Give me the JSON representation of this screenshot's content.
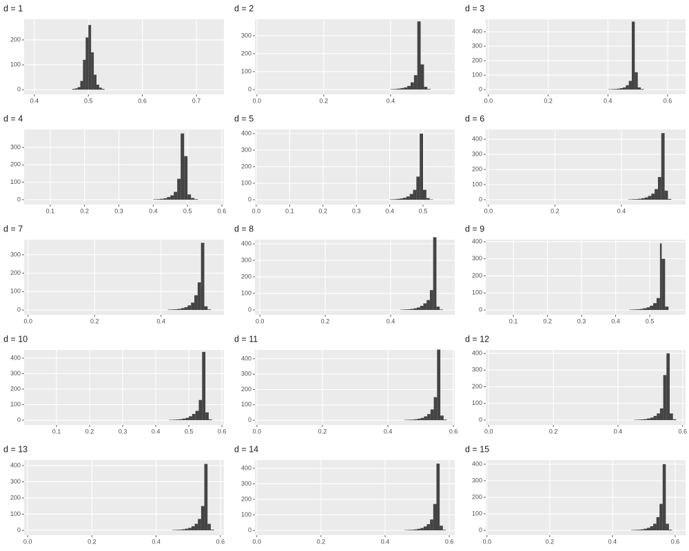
{
  "chart_data": [
    {
      "type": "histogram",
      "title": "d = 1",
      "color": "#444444",
      "grid": true,
      "xlim": [
        0.381,
        0.751
      ],
      "ylim": [
        -19,
        283
      ],
      "xticks": [
        0.4,
        0.5,
        0.6,
        0.7
      ],
      "yticks": [
        0,
        100,
        200
      ],
      "bins": [
        0.47,
        0.475,
        0.48,
        0.485,
        0.49,
        0.495,
        0.5,
        0.505,
        0.51,
        0.515,
        0.52,
        0.525,
        0.53
      ],
      "counts": [
        3,
        5,
        10,
        35,
        120,
        210,
        260,
        150,
        60,
        20,
        8,
        3
      ]
    },
    {
      "type": "histogram",
      "title": "d = 2",
      "color": "#444444",
      "grid": true,
      "xlim": [
        -0.006,
        0.592
      ],
      "ylim": [
        -27,
        392
      ],
      "xticks": [
        {
          "value": 0,
          "label": "0.0"
        },
        0.2,
        0.4
      ],
      "yticks": [
        0,
        100,
        200,
        300
      ],
      "bins": [
        0.4,
        0.41,
        0.42,
        0.43,
        0.44,
        0.45,
        0.46,
        0.47,
        0.48,
        0.49,
        0.5,
        0.51,
        0.52
      ],
      "counts": [
        2,
        3,
        5,
        8,
        12,
        20,
        40,
        80,
        380,
        140,
        15,
        3
      ]
    },
    {
      "type": "histogram",
      "title": "d = 3",
      "color": "#444444",
      "grid": true,
      "xlim": [
        -0.009,
        0.66
      ],
      "ylim": [
        -33,
        486
      ],
      "xticks": [
        {
          "value": 0,
          "label": "0.0"
        },
        0.2,
        0.4,
        0.6
      ],
      "yticks": [
        0,
        100,
        200,
        300,
        400
      ],
      "bins": [
        0.4,
        0.41,
        0.42,
        0.43,
        0.44,
        0.45,
        0.46,
        0.47,
        0.48,
        0.49,
        0.5,
        0.51,
        0.52
      ],
      "counts": [
        2,
        3,
        4,
        6,
        10,
        15,
        30,
        60,
        470,
        120,
        15,
        4
      ]
    },
    {
      "type": "histogram",
      "title": "d = 4",
      "color": "#444444",
      "grid": true,
      "xlim": [
        0.024,
        0.606
      ],
      "ylim": [
        -28,
        403
      ],
      "xticks": [
        0.1,
        0.2,
        0.3,
        0.4,
        0.5,
        0.6
      ],
      "yticks": [
        0,
        100,
        200,
        300
      ],
      "bins": [
        0.4,
        0.41,
        0.42,
        0.43,
        0.44,
        0.45,
        0.46,
        0.47,
        0.48,
        0.49,
        0.5,
        0.51,
        0.52,
        0.53
      ],
      "counts": [
        2,
        3,
        5,
        8,
        15,
        25,
        45,
        120,
        380,
        250,
        30,
        10,
        3
      ]
    },
    {
      "type": "histogram",
      "title": "d = 5",
      "color": "#444444",
      "grid": true,
      "xlim": [
        -0.004,
        0.595
      ],
      "ylim": [
        -29,
        425
      ],
      "xticks": [
        {
          "value": 0,
          "label": "0.0"
        },
        0.1,
        0.2,
        0.3,
        0.4,
        0.5
      ],
      "yticks": [
        0,
        100,
        200,
        300,
        400
      ],
      "bins": [
        0.4,
        0.41,
        0.42,
        0.43,
        0.44,
        0.45,
        0.46,
        0.47,
        0.48,
        0.49,
        0.5,
        0.51,
        0.52,
        0.53
      ],
      "counts": [
        2,
        3,
        5,
        8,
        12,
        20,
        35,
        60,
        140,
        400,
        60,
        10,
        2
      ]
    },
    {
      "type": "histogram",
      "title": "d = 6",
      "color": "#444444",
      "grid": true,
      "xlim": [
        -0.008,
        0.593
      ],
      "ylim": [
        -32,
        464
      ],
      "xticks": [
        {
          "value": 0,
          "label": "0.0"
        },
        0.2,
        0.4
      ],
      "yticks": [
        0,
        100,
        200,
        300,
        400
      ],
      "bins": [
        0.42,
        0.43,
        0.44,
        0.45,
        0.46,
        0.47,
        0.48,
        0.49,
        0.5,
        0.51,
        0.52,
        0.53,
        0.54,
        0.55
      ],
      "counts": [
        2,
        3,
        4,
        6,
        10,
        15,
        25,
        40,
        70,
        150,
        440,
        60,
        5
      ]
    },
    {
      "type": "histogram",
      "title": "d = 7",
      "color": "#444444",
      "grid": true,
      "xlim": [
        -0.012,
        0.589
      ],
      "ylim": [
        -26,
        382
      ],
      "xticks": [
        {
          "value": 0,
          "label": "0.0"
        },
        0.2,
        0.4
      ],
      "yticks": [
        0,
        100,
        200,
        300
      ],
      "bins": [
        0.42,
        0.43,
        0.44,
        0.45,
        0.46,
        0.47,
        0.48,
        0.49,
        0.5,
        0.51,
        0.52,
        0.53,
        0.54,
        0.55
      ],
      "counts": [
        2,
        3,
        4,
        6,
        10,
        15,
        25,
        40,
        80,
        150,
        365,
        20,
        3
      ]
    },
    {
      "type": "histogram",
      "title": "d = 8",
      "color": "#444444",
      "grid": true,
      "xlim": [
        -0.015,
        0.596
      ],
      "ylim": [
        -29,
        425
      ],
      "xticks": [
        {
          "value": 0,
          "label": "0.0"
        },
        0.2,
        0.4
      ],
      "yticks": [
        0,
        100,
        200,
        300,
        400
      ],
      "bins": [
        0.43,
        0.44,
        0.45,
        0.46,
        0.47,
        0.48,
        0.49,
        0.5,
        0.51,
        0.52,
        0.53,
        0.54,
        0.55,
        0.56
      ],
      "counts": [
        2,
        3,
        4,
        6,
        10,
        15,
        25,
        40,
        60,
        120,
        440,
        20,
        3
      ]
    },
    {
      "type": "histogram",
      "title": "d = 9",
      "color": "#444444",
      "grid": true,
      "xlim": [
        0.019,
        0.605
      ],
      "ylim": [
        -28,
        412
      ],
      "xticks": [
        0.1,
        0.2,
        0.3,
        0.4,
        0.5
      ],
      "yticks": [
        0,
        100,
        200,
        300,
        400
      ],
      "bins": [
        0.44,
        0.45,
        0.46,
        0.47,
        0.48,
        0.49,
        0.5,
        0.51,
        0.52,
        0.53,
        0.535,
        0.545,
        0.555
      ],
      "counts": [
        2,
        3,
        4,
        6,
        10,
        15,
        25,
        40,
        70,
        390,
        300,
        20
      ]
    },
    {
      "type": "histogram",
      "title": "d = 10",
      "color": "#444444",
      "grid": true,
      "xlim": [
        0.002,
        0.606
      ],
      "ylim": [
        -31,
        453
      ],
      "xticks": [
        0.1,
        0.2,
        0.3,
        0.4,
        0.5,
        0.6
      ],
      "yticks": [
        0,
        100,
        200,
        300,
        400
      ],
      "bins": [
        0.44,
        0.45,
        0.46,
        0.47,
        0.48,
        0.49,
        0.5,
        0.51,
        0.52,
        0.53,
        0.54,
        0.55,
        0.56,
        0.57
      ],
      "counts": [
        2,
        3,
        4,
        6,
        10,
        15,
        25,
        40,
        60,
        130,
        440,
        50,
        5
      ]
    },
    {
      "type": "histogram",
      "title": "d = 11",
      "color": "#444444",
      "grid": true,
      "xlim": [
        -0.006,
        0.604
      ],
      "ylim": [
        -31,
        458
      ],
      "xticks": [
        {
          "value": 0,
          "label": "0.0"
        },
        0.2,
        0.4,
        0.6
      ],
      "yticks": [
        0,
        100,
        200,
        300,
        400
      ],
      "bins": [
        0.45,
        0.46,
        0.47,
        0.48,
        0.49,
        0.5,
        0.51,
        0.52,
        0.53,
        0.54,
        0.55,
        0.56,
        0.57,
        0.58
      ],
      "counts": [
        2,
        3,
        4,
        6,
        10,
        15,
        25,
        40,
        70,
        150,
        460,
        30,
        4
      ]
    },
    {
      "type": "histogram",
      "title": "d = 12",
      "color": "#444444",
      "grid": true,
      "xlim": [
        -0.009,
        0.609
      ],
      "ylim": [
        -29,
        421
      ],
      "xticks": [
        {
          "value": 0,
          "label": "0.0"
        },
        0.2,
        0.4,
        0.6
      ],
      "yticks": [
        0,
        100,
        200,
        300,
        400
      ],
      "bins": [
        0.45,
        0.46,
        0.47,
        0.48,
        0.49,
        0.5,
        0.51,
        0.52,
        0.53,
        0.54,
        0.55,
        0.56,
        0.57,
        0.58
      ],
      "counts": [
        2,
        3,
        4,
        6,
        10,
        15,
        25,
        40,
        70,
        270,
        400,
        40,
        5
      ]
    },
    {
      "type": "histogram",
      "title": "d = 13",
      "color": "#444444",
      "grid": true,
      "xlim": [
        -0.011,
        0.611
      ],
      "ylim": [
        -30,
        434
      ],
      "xticks": [
        {
          "value": 0,
          "label": "0.0"
        },
        0.2,
        0.4,
        0.6
      ],
      "yticks": [
        0,
        100,
        200,
        300,
        400
      ],
      "bins": [
        0.45,
        0.46,
        0.47,
        0.48,
        0.49,
        0.5,
        0.51,
        0.52,
        0.53,
        0.54,
        0.55,
        0.56,
        0.57,
        0.58
      ],
      "counts": [
        2,
        3,
        4,
        6,
        10,
        15,
        25,
        40,
        70,
        150,
        410,
        40,
        4
      ]
    },
    {
      "type": "histogram",
      "title": "d = 14",
      "color": "#444444",
      "grid": true,
      "xlim": [
        -0.006,
        0.617
      ],
      "ylim": [
        -31,
        453
      ],
      "xticks": [
        {
          "value": 0,
          "label": "0.0"
        },
        0.2,
        0.4,
        0.6
      ],
      "yticks": [
        0,
        100,
        200,
        300,
        400
      ],
      "bins": [
        0.46,
        0.47,
        0.48,
        0.49,
        0.5,
        0.51,
        0.52,
        0.53,
        0.54,
        0.55,
        0.56,
        0.57,
        0.58,
        0.59
      ],
      "counts": [
        2,
        3,
        4,
        6,
        10,
        15,
        25,
        40,
        70,
        170,
        430,
        30,
        3
      ]
    },
    {
      "type": "histogram",
      "title": "d = 15",
      "color": "#444444",
      "grid": true,
      "xlim": [
        -0.004,
        0.633
      ],
      "ylim": [
        -29,
        425
      ],
      "xticks": [
        {
          "value": 0,
          "label": "0.0"
        },
        0.2,
        0.4,
        0.6
      ],
      "yticks": [
        0,
        100,
        200,
        300,
        400
      ],
      "bins": [
        0.46,
        0.47,
        0.48,
        0.49,
        0.5,
        0.51,
        0.52,
        0.53,
        0.54,
        0.55,
        0.56,
        0.57,
        0.58,
        0.59
      ],
      "counts": [
        2,
        3,
        4,
        6,
        10,
        15,
        25,
        40,
        80,
        160,
        400,
        40,
        4
      ]
    }
  ]
}
